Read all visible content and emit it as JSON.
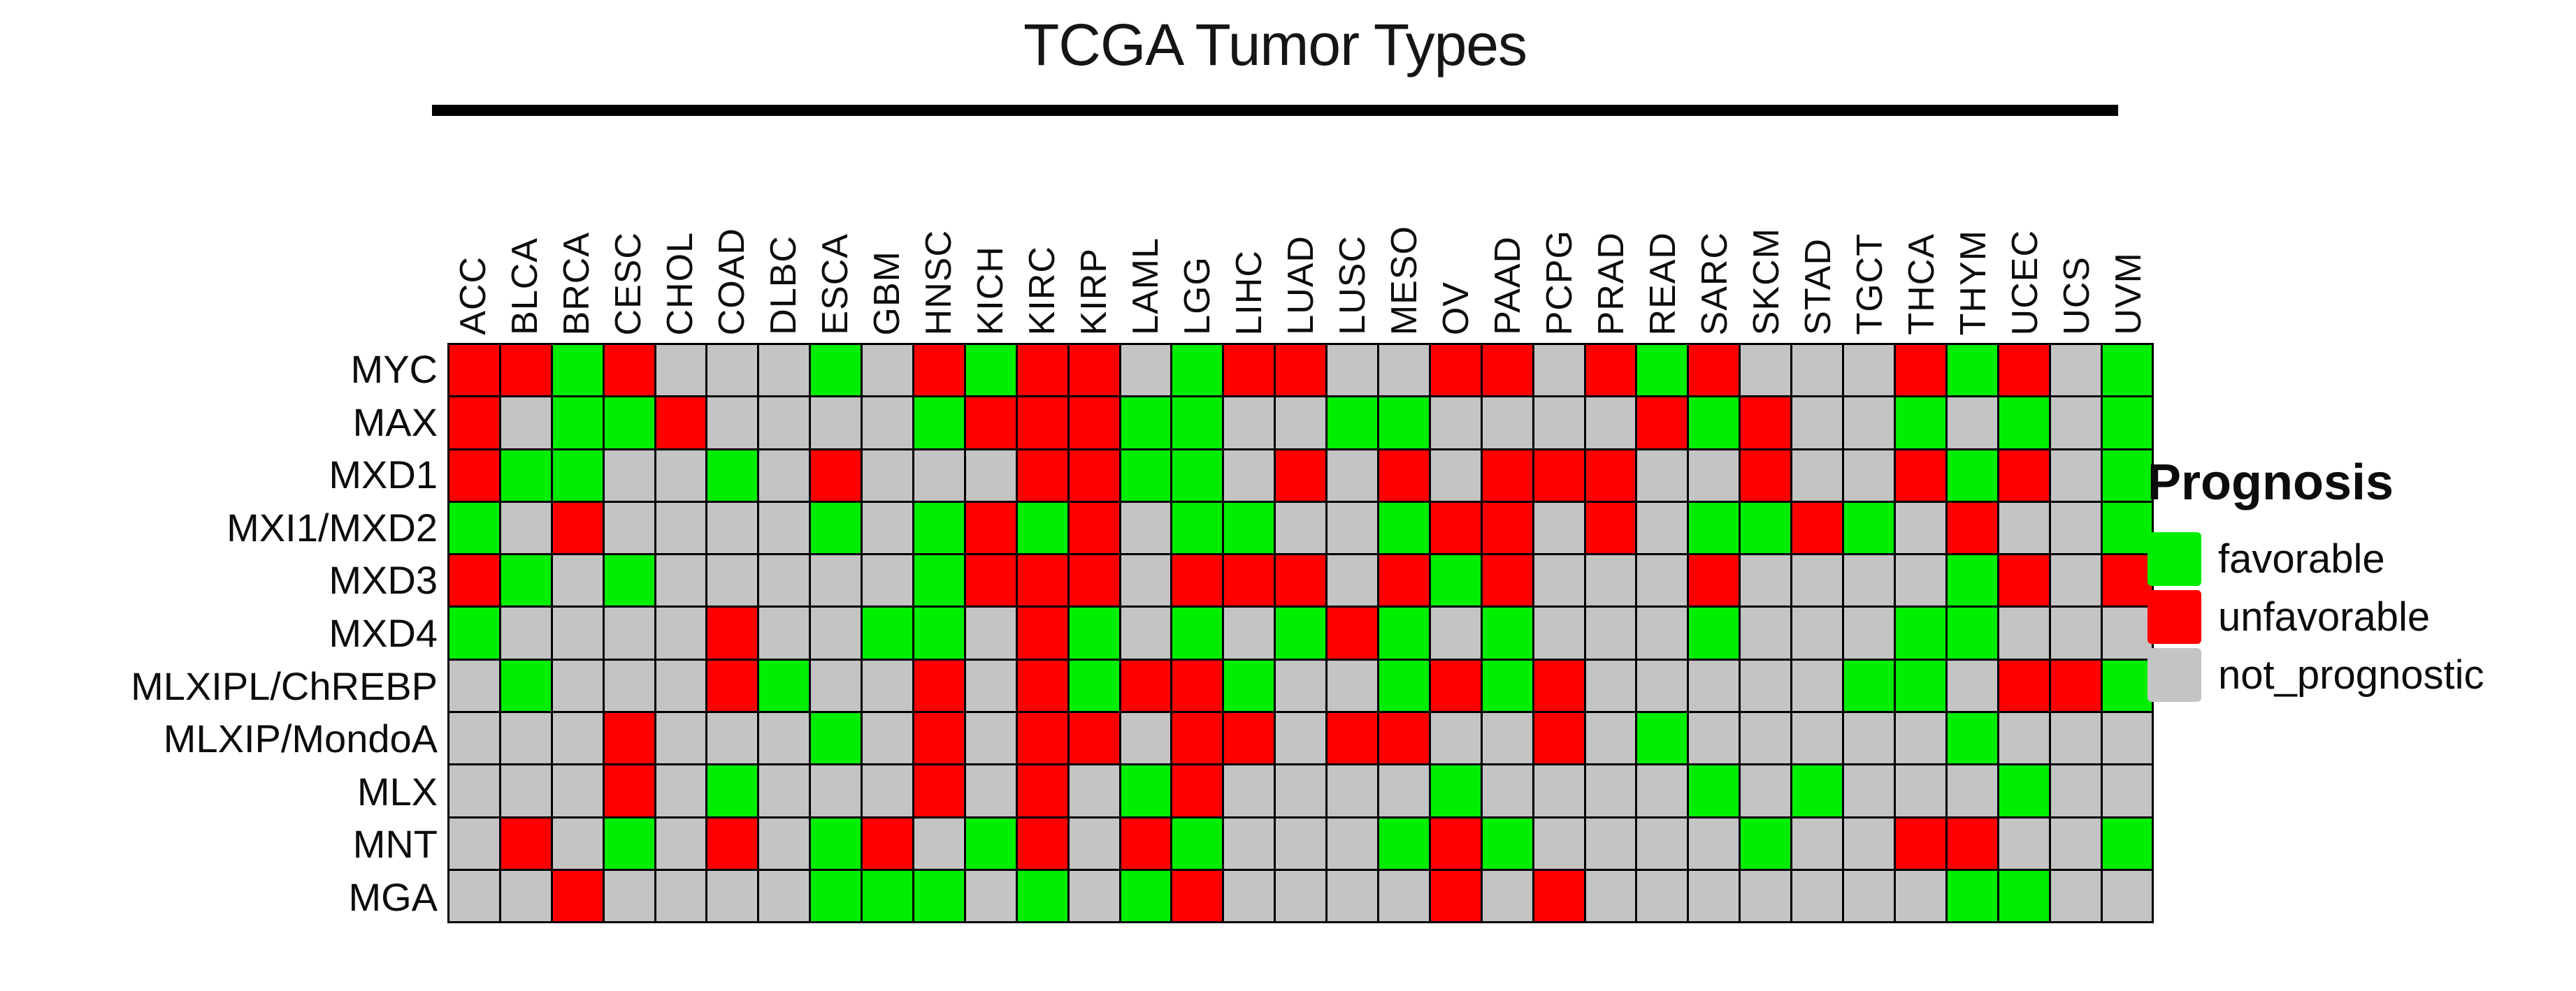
{
  "chart_data": {
    "type": "heatmap",
    "title": "TCGA Tumor Types",
    "xlabel": "TCGA Tumor Types",
    "ylabel": "",
    "grid": true,
    "columns": [
      "ACC",
      "BLCA",
      "BRCA",
      "CESC",
      "CHOL",
      "COAD",
      "DLBC",
      "ESCA",
      "GBM",
      "HNSC",
      "KICH",
      "KIRC",
      "KIRP",
      "LAML",
      "LGG",
      "LIHC",
      "LUAD",
      "LUSC",
      "MESO",
      "OV",
      "PAAD",
      "PCPG",
      "PRAD",
      "READ",
      "SARC",
      "SKCM",
      "STAD",
      "TGCT",
      "THCA",
      "THYM",
      "UCEC",
      "UCS",
      "UVM"
    ],
    "rows": [
      {
        "gene": "MYC",
        "values": "UUFUNNNFNUFUUNFUUNNUUNUFUNNNUFUNF"
      },
      {
        "gene": "MAX",
        "values": "UNFFUNNNNFUUUFFNNFFNNNNUFUNNFNFNF"
      },
      {
        "gene": "MXD1",
        "values": "UFFNNFNUNNNUUFFNUNUNUUUNNUNNUFUNF"
      },
      {
        "gene": "MXI1/MXD2",
        "values": "FNUNNNNFNFUFUNFFNNFUUNUNFFUFNUNNF"
      },
      {
        "gene": "MXD3",
        "values": "UFNFNNNNNFUUUNUUUNUFUNNNUNNNNFUNU"
      },
      {
        "gene": "MXD4",
        "values": "FNNNNUNNFFNUFNFNFUFNFNNNFNNNFFNNN"
      },
      {
        "gene": "MLXIPL/ChREBP",
        "values": "NFNNNUFNNUNUFUUFNNFUFUNNNNNFFNUUF"
      },
      {
        "gene": "MLXIP/MondoA",
        "values": "NNNUNNNFNUNUUNUUNUUNNUNFNNNNNFNNN"
      },
      {
        "gene": "MLX",
        "values": "NNNUNFNNNUNUNFUNNNNFNNNNFNFNNNFNN"
      },
      {
        "gene": "MNT",
        "values": "NUNFNUNFUNFUNUFNNNFUFNNNNFNNUUNNF"
      },
      {
        "gene": "MGA",
        "values": "NNUNNNNFFFNFNFUNNNNUNUNNNNNNNFFNN"
      }
    ],
    "value_codes": {
      "F": "favorable",
      "U": "unfavorable",
      "N": "not_prognostic"
    },
    "colors": {
      "favorable": "#00EE00",
      "unfavorable": "#FE0000",
      "not_prognostic": "#C4C4C4",
      "grid_line": "#000000"
    },
    "legend": {
      "title": "Prognosis",
      "position": "right",
      "entries": [
        {
          "code": "F",
          "label": "favorable",
          "color": "#00EE00"
        },
        {
          "code": "U",
          "label": "unfavorable",
          "color": "#FE0000"
        },
        {
          "code": "N",
          "label": "not_prognostic",
          "color": "#C4C4C4"
        }
      ]
    }
  }
}
